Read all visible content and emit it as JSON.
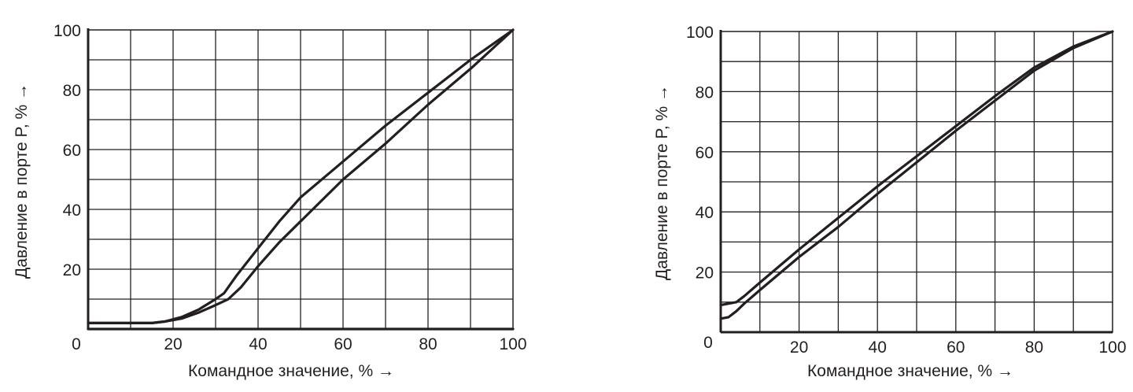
{
  "chart_data": [
    {
      "type": "line",
      "xlabel": "Командное значение, %  →",
      "ylabel": "Давление в порте P, %  →",
      "xlim": [
        0,
        100
      ],
      "ylim": [
        0,
        100
      ],
      "x_ticks": [
        "0",
        "20",
        "40",
        "60",
        "80",
        "100"
      ],
      "y_ticks": [
        "20",
        "40",
        "60",
        "80",
        "100"
      ],
      "grid": true,
      "series": [
        {
          "x": [
            0,
            15,
            18,
            22,
            26,
            30,
            32,
            35,
            40,
            45,
            50,
            60,
            70,
            80,
            90,
            100
          ],
          "y": [
            2,
            2,
            2.5,
            4,
            6.5,
            10,
            12,
            18,
            27,
            36,
            44,
            56,
            68,
            79,
            90,
            100
          ]
        },
        {
          "x": [
            0,
            15,
            18,
            22,
            26,
            30,
            33,
            36,
            40,
            45,
            50,
            60,
            70,
            80,
            90,
            100
          ],
          "y": [
            2,
            2,
            2.5,
            3.5,
            5.5,
            8,
            10,
            14,
            21,
            29,
            36,
            50,
            62,
            75,
            87,
            100
          ]
        },
        {
          "x": [
            0,
            100
          ],
          "y": [
            0,
            0
          ]
        }
      ]
    },
    {
      "type": "line",
      "xlabel": "Командное значение, %  →",
      "ylabel": "Давление в порте P, %  →",
      "xlim": [
        0,
        100
      ],
      "ylim": [
        0,
        100
      ],
      "x_ticks": [
        "0",
        "20",
        "40",
        "60",
        "80",
        "100"
      ],
      "y_ticks": [
        "20",
        "40",
        "60",
        "80",
        "100"
      ],
      "grid": true,
      "series": [
        {
          "x": [
            0,
            2,
            4,
            6,
            10,
            20,
            30,
            40,
            50,
            60,
            70,
            80,
            90,
            100
          ],
          "y": [
            9,
            9.5,
            10,
            12,
            16.5,
            27.5,
            38,
            48.5,
            58.5,
            68.5,
            78.5,
            88,
            95,
            100
          ]
        },
        {
          "x": [
            0,
            2,
            4,
            6,
            10,
            20,
            30,
            40,
            50,
            60,
            70,
            80,
            90,
            100
          ],
          "y": [
            4.5,
            5,
            7,
            9.5,
            14,
            25,
            35,
            46,
            56.5,
            67,
            77,
            87,
            94.5,
            100
          ]
        }
      ]
    }
  ]
}
